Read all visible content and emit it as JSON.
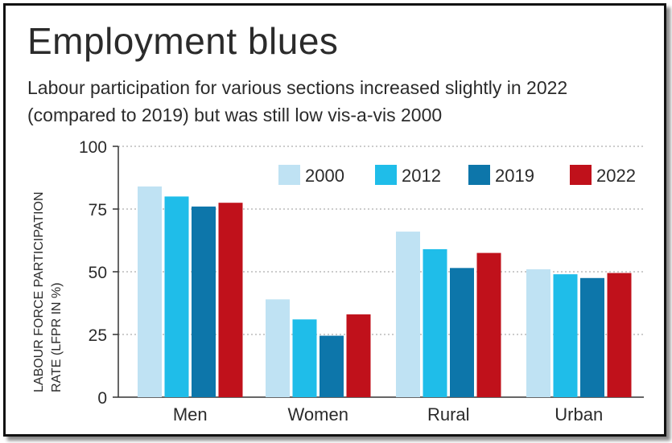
{
  "title": "Employment blues",
  "subtitle": "Labour participation for various sections increased slightly in 2022 (compared to 2019) but was still low vis-a-vis 2000",
  "colors": {
    "2000": "#bfe2f3",
    "2012": "#1fbde9",
    "2019": "#0d76aa",
    "2022": "#c0111b"
  },
  "chart_data": {
    "type": "bar",
    "title": "Employment blues",
    "subtitle": "Labour participation for various sections increased slightly in 2022 (compared to 2019) but was still low vis-a-vis 2000",
    "xlabel": "",
    "ylabel": "LABOUR FORCE PARTICIPATION RATE (LFPR IN %)",
    "categories": [
      "Men",
      "Women",
      "Rural",
      "Urban"
    ],
    "ylim": [
      0,
      100
    ],
    "yticks": [
      0,
      25,
      50,
      75,
      100
    ],
    "grid": true,
    "legend_position": "top-right",
    "series": [
      {
        "name": "2000",
        "values": [
          84,
          39,
          66,
          51
        ]
      },
      {
        "name": "2012",
        "values": [
          80,
          31,
          59,
          49
        ]
      },
      {
        "name": "2019",
        "values": [
          76,
          24.5,
          51.5,
          47.5
        ]
      },
      {
        "name": "2022",
        "values": [
          77.5,
          33,
          57.5,
          49.5
        ]
      }
    ]
  }
}
